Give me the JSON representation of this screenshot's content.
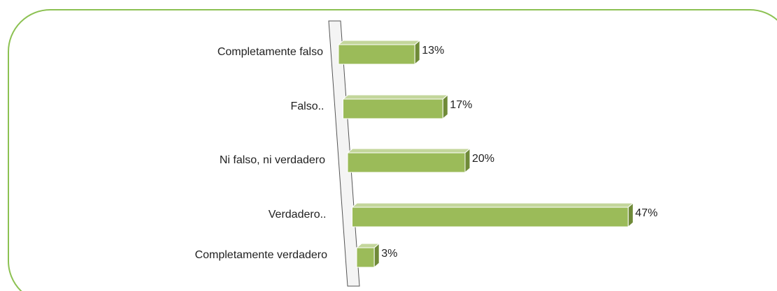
{
  "chart_data": {
    "type": "bar3d_horizontal",
    "categories": [
      "Completamente falso",
      "Falso..",
      "Ni falso, ni verdadero",
      "Verdadero..",
      "Completamente verdadero"
    ],
    "values": [
      13,
      17,
      20,
      47,
      3
    ],
    "value_labels": [
      "13%",
      "17%",
      "20%",
      "47%",
      "3%"
    ],
    "color": "#9bbb59"
  }
}
